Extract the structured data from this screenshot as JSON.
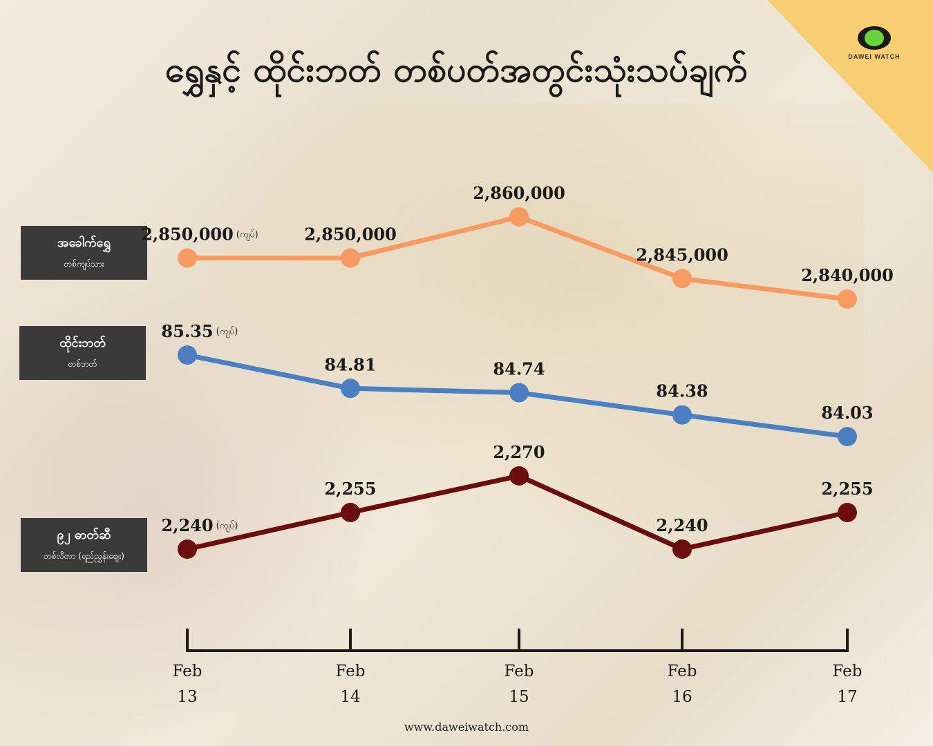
{
  "title": "ရွှေနှင့် ထိုင်းဘတ် တစ်ပတ်အတွင်းသုံးသပ်ချက်",
  "logo_text": "DAWEI WATCH",
  "footer": "www.daweiwatch.com",
  "unit_label": "(ကျပ်)",
  "labels": [
    {
      "main": "အခေါက်ရွှေ",
      "sub": "တစ်ကျပ်သား"
    },
    {
      "main": "ထိုင်းဘတ်",
      "sub": "တစ်ဘတ်"
    },
    {
      "main": "၉၂ ဓာတ်ဆီ",
      "sub": "တစ်လီတာ (ရည်ညွှန်းဈေး)"
    }
  ],
  "chart_data": {
    "type": "line",
    "categories": [
      "Feb 13",
      "Feb 14",
      "Feb 15",
      "Feb 16",
      "Feb 17"
    ],
    "series": [
      {
        "name": "အခေါက်ရွှေ",
        "values": [
          2850000,
          2850000,
          2860000,
          2845000,
          2840000
        ],
        "labels": [
          "2,850,000",
          "2,850,000",
          "2,860,000",
          "2,845,000",
          "2,840,000"
        ],
        "color": "#f79b62"
      },
      {
        "name": "ထိုင်းဘတ်",
        "values": [
          85.35,
          84.81,
          84.74,
          84.38,
          84.03
        ],
        "labels": [
          "85.35",
          "84.81",
          "84.74",
          "84.38",
          "84.03"
        ],
        "color": "#4a7fc4"
      },
      {
        "name": "၉၂ ဓာတ်ဆီ",
        "values": [
          2240,
          2255,
          2270,
          2240,
          2255
        ],
        "labels": [
          "2,240",
          "2,255",
          "2,270",
          "2,240",
          "2,255"
        ],
        "color": "#6b0d0d"
      }
    ]
  }
}
